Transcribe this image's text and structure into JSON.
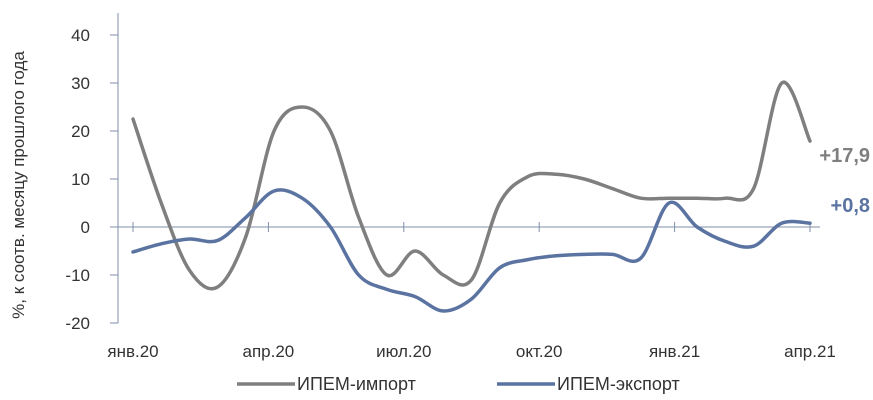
{
  "chart_data": {
    "type": "line",
    "ylabel": "%, к соотв. месяцу прошлого года",
    "ylim": [
      -20,
      40
    ],
    "yticks": [
      -20,
      -10,
      0,
      10,
      20,
      30,
      40
    ],
    "x_tick_labels": [
      "янв.20",
      "апр.20",
      "июл.20",
      "окт.20",
      "янв.21",
      "апр.21"
    ],
    "x_tick_positions": [
      0,
      3,
      6,
      9,
      12,
      15
    ],
    "x": [
      0,
      0.5,
      1,
      1.5,
      2,
      2.5,
      3,
      3.5,
      4,
      4.5,
      5,
      5.5,
      6,
      6.5,
      7,
      7.5,
      8,
      8.5,
      9,
      9.5,
      10,
      10.5,
      11,
      11.5,
      12,
      12.5,
      13,
      13.5,
      14,
      14.5,
      15
    ],
    "series": [
      {
        "name": "ИПЕМ-импорт",
        "color": "#7f7f7f",
        "values": [
          22.5,
          5,
          -9,
          -12.5,
          -2,
          20,
          25,
          20,
          2,
          -10,
          -5,
          -10,
          -11,
          5,
          10.5,
          11,
          10,
          8,
          6,
          6,
          6,
          6,
          8,
          30,
          17.9,
          17.9,
          17.9,
          17.9,
          17.9,
          17.9,
          17.9
        ],
        "end_label": "+17,9"
      },
      {
        "name": "ИПЕМ-экспорт",
        "color": "#5b73a1",
        "values": [
          -5.2,
          -3.5,
          -2.5,
          -2.8,
          2,
          7.5,
          6,
          0,
          -10,
          -13,
          -14.5,
          -17.5,
          -15,
          -8.5,
          -6.8,
          -6,
          -5.7,
          -5.7,
          -6.5,
          5,
          0,
          -3,
          -4,
          0.8,
          0.8,
          0.8,
          0.8,
          0.8,
          0.8,
          0.8,
          0.8
        ],
        "end_label": "+0,8"
      }
    ],
    "legend_position": "bottom",
    "grid": false
  }
}
